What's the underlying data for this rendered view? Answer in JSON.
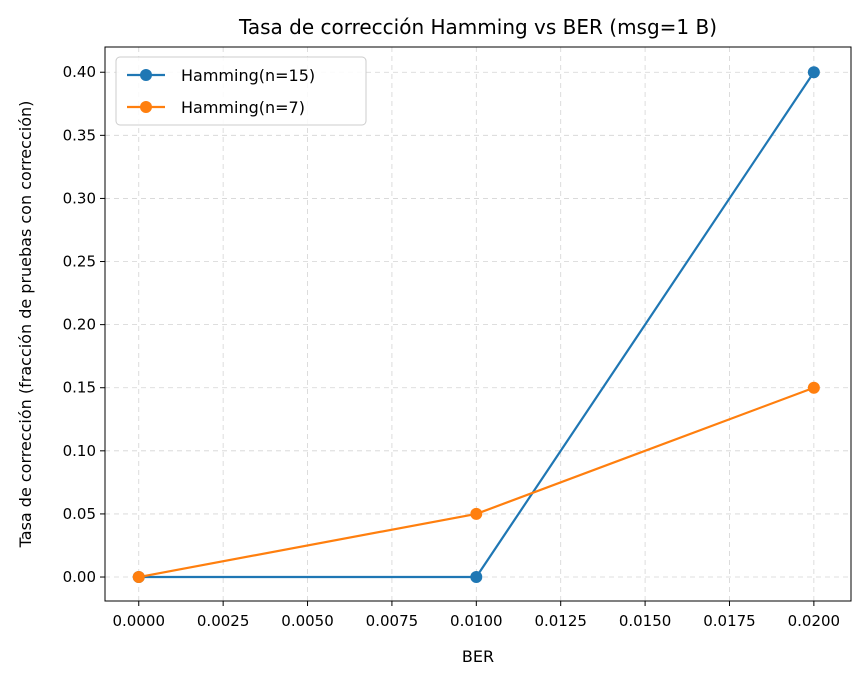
{
  "chart_data": {
    "type": "line",
    "title": "Tasa de corrección Hamming vs BER (msg=1 B)",
    "xlabel": "BER",
    "ylabel": "Tasa de corrección (fracción de pruebas con corrección)",
    "xlim": [
      -0.001,
      0.0211
    ],
    "ylim": [
      -0.019,
      0.42
    ],
    "x_ticks": [
      0.0,
      0.0025,
      0.005,
      0.0075,
      0.01,
      0.0125,
      0.015,
      0.0175,
      0.02
    ],
    "x_tick_labels": [
      "0.0000",
      "0.0025",
      "0.0050",
      "0.0075",
      "0.0100",
      "0.0125",
      "0.0150",
      "0.0175",
      "0.0200"
    ],
    "y_ticks": [
      0.0,
      0.05,
      0.1,
      0.15,
      0.2,
      0.25,
      0.3,
      0.35,
      0.4
    ],
    "y_tick_labels": [
      "0.00",
      "0.05",
      "0.10",
      "0.15",
      "0.20",
      "0.25",
      "0.30",
      "0.35",
      "0.40"
    ],
    "grid": true,
    "legend_position": "top-left",
    "x": [
      0.0,
      0.01,
      0.02
    ],
    "series": [
      {
        "name": "Hamming(n=15)",
        "color": "#1f77b4",
        "values": [
          0.0,
          0.0,
          0.4
        ]
      },
      {
        "name": "Hamming(n=7)",
        "color": "#ff7f0e",
        "values": [
          0.0,
          0.05,
          0.15
        ]
      }
    ]
  }
}
